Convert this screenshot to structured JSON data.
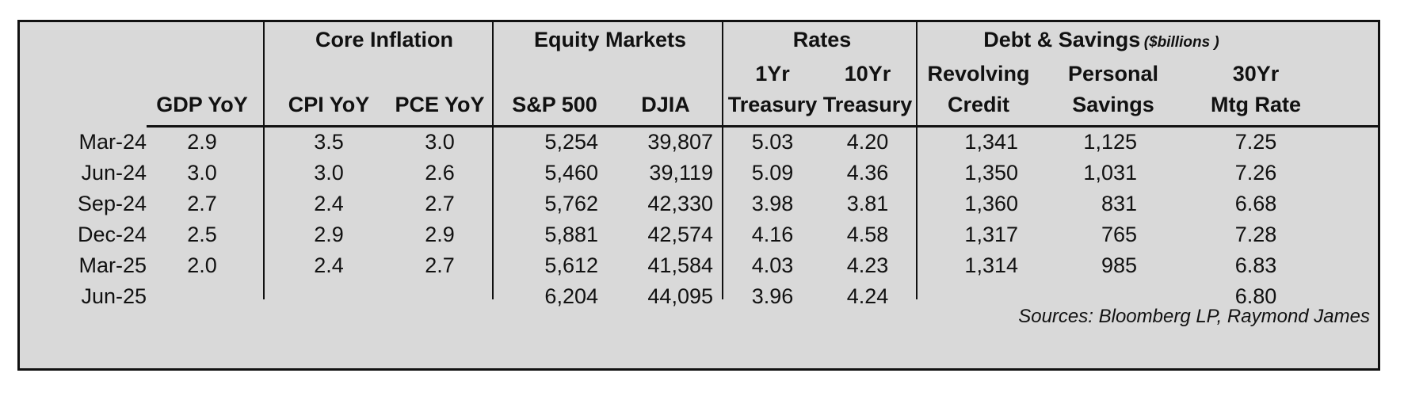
{
  "headers": {
    "groups": {
      "core_inflation": "Core Inflation",
      "equity_markets": "Equity Markets",
      "rates": "Rates",
      "debt_savings": "Debt & Savings",
      "debt_savings_unit": "($billions )"
    },
    "columns": {
      "gdp_yoy": "GDP YoY",
      "cpi_yoy": "CPI YoY",
      "pce_yoy": "PCE YoY",
      "sp500": "S&P 500",
      "djia": "DJIA",
      "tsy1_l1": "1Yr",
      "tsy1_l2": "Treasury",
      "tsy10_l1": "10Yr",
      "tsy10_l2": "Treasury",
      "rev_l1": "Revolving",
      "rev_l2": "Credit",
      "sav_l1": "Personal",
      "sav_l2": "Savings",
      "mtg_l1": "30Yr",
      "mtg_l2": "Mtg Rate"
    }
  },
  "rows": [
    {
      "period": "Mar-24",
      "gdp": "2.9",
      "cpi": "3.5",
      "pce": "3.0",
      "sp500": "5,254",
      "djia": "39,807",
      "tsy1": "5.03",
      "tsy10": "4.20",
      "revolving": "1,341",
      "savings": "1,125",
      "mtg": "7.25"
    },
    {
      "period": "Jun-24",
      "gdp": "3.0",
      "cpi": "3.0",
      "pce": "2.6",
      "sp500": "5,460",
      "djia": "39,119",
      "tsy1": "5.09",
      "tsy10": "4.36",
      "revolving": "1,350",
      "savings": "1,031",
      "mtg": "7.26"
    },
    {
      "period": "Sep-24",
      "gdp": "2.7",
      "cpi": "2.4",
      "pce": "2.7",
      "sp500": "5,762",
      "djia": "42,330",
      "tsy1": "3.98",
      "tsy10": "3.81",
      "revolving": "1,360",
      "savings": "831",
      "mtg": "6.68"
    },
    {
      "period": "Dec-24",
      "gdp": "2.5",
      "cpi": "2.9",
      "pce": "2.9",
      "sp500": "5,881",
      "djia": "42,574",
      "tsy1": "4.16",
      "tsy10": "4.58",
      "revolving": "1,317",
      "savings": "765",
      "mtg": "7.28"
    },
    {
      "period": "Mar-25",
      "gdp": "2.0",
      "cpi": "2.4",
      "pce": "2.7",
      "sp500": "5,612",
      "djia": "41,584",
      "tsy1": "4.03",
      "tsy10": "4.23",
      "revolving": "1,314",
      "savings": "985",
      "mtg": "6.83"
    },
    {
      "period": "Jun-25",
      "gdp": "",
      "cpi": "",
      "pce": "",
      "sp500": "6,204",
      "djia": "44,095",
      "tsy1": "3.96",
      "tsy10": "4.24",
      "revolving": "",
      "savings": "",
      "mtg": "6.80"
    }
  ],
  "source": "Sources: Bloomberg LP, Raymond James"
}
